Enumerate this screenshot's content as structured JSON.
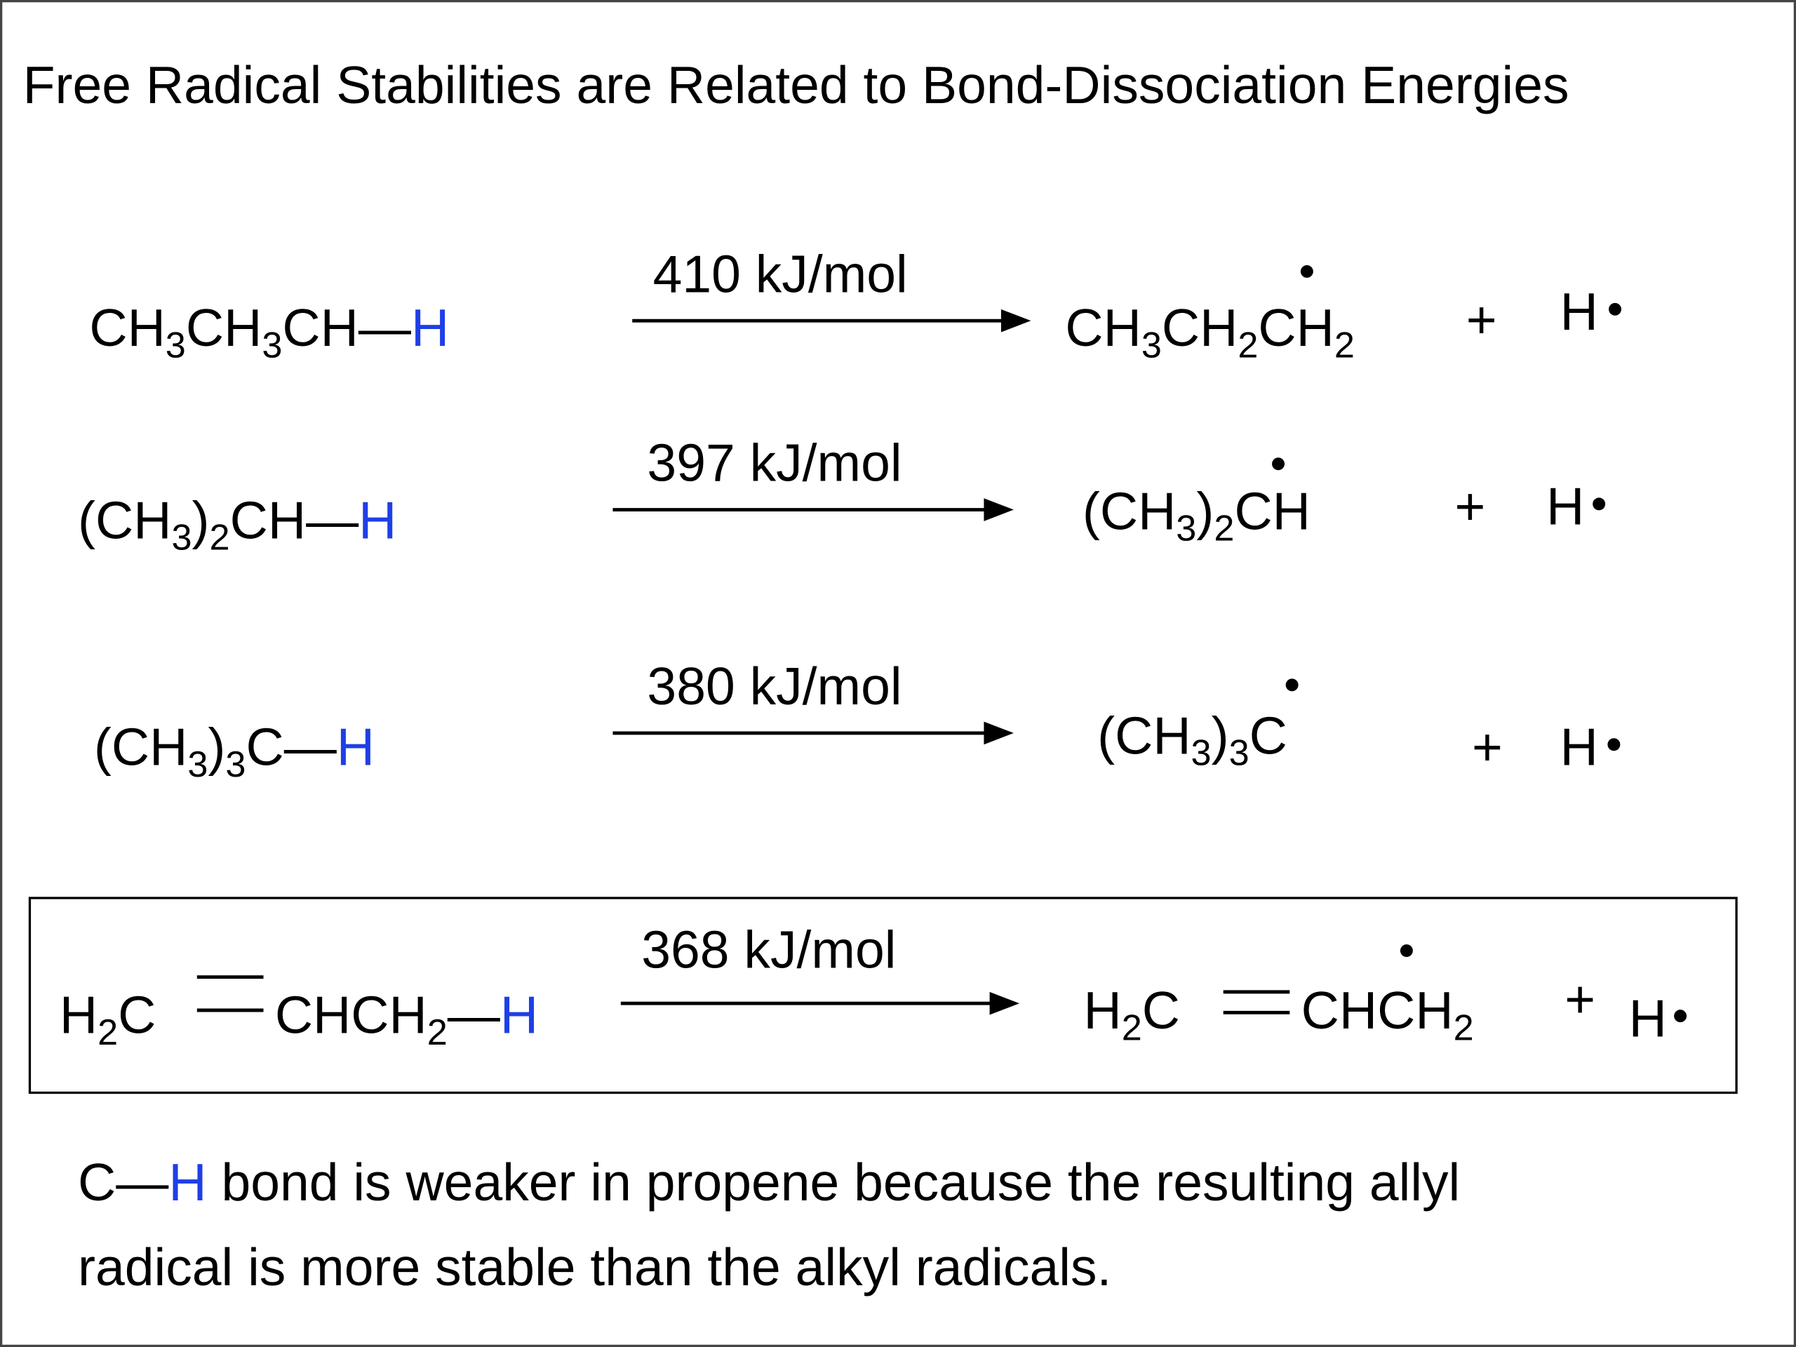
{
  "title": "Free Radical Stabilities are Related to Bond-Dissociation Energies",
  "reactions": [
    {
      "reactant": [
        [
          {
            "text": "CH"
          },
          {
            "sub": "3"
          },
          {
            "text": "CH"
          },
          {
            "sub": "3"
          },
          {
            "text": "CH—"
          },
          {
            "h": "H"
          }
        ]
      ],
      "energy": "410 kJ/mol",
      "product": [
        [
          {
            "text": "CH"
          },
          {
            "sub": "3"
          },
          {
            "text": "CH"
          },
          {
            "sub": "2"
          },
          {
            "text": "CH"
          },
          {
            "sub": "2"
          }
        ]
      ],
      "plus": "+",
      "radical": "H"
    },
    {
      "reactant": [
        [
          {
            "text": "(CH"
          },
          {
            "sub": "3"
          },
          {
            "text": ")"
          },
          {
            "sub": "2"
          },
          {
            "text": "CH—"
          },
          {
            "h": "H"
          }
        ]
      ],
      "energy": "397 kJ/mol",
      "product": [
        [
          {
            "text": "(CH"
          },
          {
            "sub": "3"
          },
          {
            "text": ")"
          },
          {
            "sub": "2"
          },
          {
            "text": "CH"
          }
        ]
      ],
      "plus": "+",
      "radical": "H"
    },
    {
      "reactant": [
        [
          {
            "text": "(CH"
          },
          {
            "sub": "3"
          },
          {
            "text": ")"
          },
          {
            "sub": "3"
          },
          {
            "text": "C—"
          },
          {
            "h": "H"
          }
        ]
      ],
      "energy": "380 kJ/mol",
      "product": [
        [
          {
            "text": "(CH"
          },
          {
            "sub": "3"
          },
          {
            "text": ")"
          },
          {
            "sub": "3"
          },
          {
            "text": "C"
          }
        ]
      ],
      "plus": "+",
      "radical": "H"
    },
    {
      "reactant": [
        [
          {
            "text": "H"
          },
          {
            "sub": "2"
          },
          {
            "text": "C"
          }
        ],
        [
          {
            "text": "CHCH"
          },
          {
            "sub": "2"
          },
          {
            "text": "—"
          },
          {
            "h": "H"
          }
        ]
      ],
      "energy": "368 kJ/mol",
      "product": [
        [
          {
            "text": "H"
          },
          {
            "sub": "2"
          },
          {
            "text": "C"
          }
        ],
        [
          {
            "text": "CHCH"
          },
          {
            "sub": "2"
          }
        ]
      ],
      "plus": "+",
      "radical": "H"
    }
  ],
  "note": [
    [
      {
        "text": "C—"
      },
      {
        "h": "H"
      },
      {
        "text": " bond is weaker in propene because the resulting allyl"
      }
    ],
    [
      {
        "text": "radical is more stable than the alkyl radicals."
      }
    ]
  ]
}
